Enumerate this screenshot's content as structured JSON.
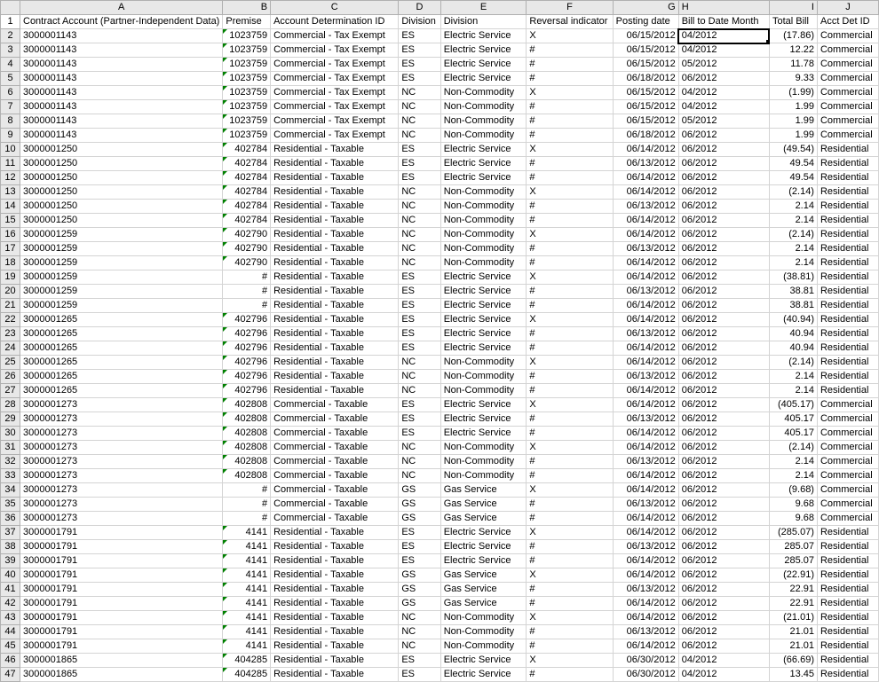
{
  "columns": [
    "A",
    "B",
    "C",
    "D",
    "E",
    "F",
    "G",
    "H",
    "I",
    "J"
  ],
  "headers": {
    "A": "Contract Account (Partner-Independent Data)",
    "B": "Premise",
    "C": "Account Determination ID",
    "D": "Division",
    "E": "Division",
    "F": "Reversal indicator",
    "G": "Posting date",
    "H": "Bill to Date Month",
    "I": "Total Bill",
    "J": "Acct Det ID"
  },
  "selected_cell": "H2",
  "rows": [
    {
      "n": 2,
      "A": "3000001143",
      "B": "1023759",
      "C": "Commercial - Tax Exempt",
      "D": "ES",
      "E": "Electric Service",
      "F": "X",
      "G": "06/15/2012",
      "H": "04/2012",
      "I": "(17.86)",
      "J": "Commercial",
      "tri": true
    },
    {
      "n": 3,
      "A": "3000001143",
      "B": "1023759",
      "C": "Commercial - Tax Exempt",
      "D": "ES",
      "E": "Electric Service",
      "F": "#",
      "G": "06/15/2012",
      "H": "04/2012",
      "I": "12.22",
      "J": "Commercial",
      "tri": true
    },
    {
      "n": 4,
      "A": "3000001143",
      "B": "1023759",
      "C": "Commercial - Tax Exempt",
      "D": "ES",
      "E": "Electric Service",
      "F": "#",
      "G": "06/15/2012",
      "H": "05/2012",
      "I": "11.78",
      "J": "Commercial",
      "tri": true
    },
    {
      "n": 5,
      "A": "3000001143",
      "B": "1023759",
      "C": "Commercial - Tax Exempt",
      "D": "ES",
      "E": "Electric Service",
      "F": "#",
      "G": "06/18/2012",
      "H": "06/2012",
      "I": "9.33",
      "J": "Commercial",
      "tri": true
    },
    {
      "n": 6,
      "A": "3000001143",
      "B": "1023759",
      "C": "Commercial - Tax Exempt",
      "D": "NC",
      "E": "Non-Commodity",
      "F": "X",
      "G": "06/15/2012",
      "H": "04/2012",
      "I": "(1.99)",
      "J": "Commercial",
      "tri": true
    },
    {
      "n": 7,
      "A": "3000001143",
      "B": "1023759",
      "C": "Commercial - Tax Exempt",
      "D": "NC",
      "E": "Non-Commodity",
      "F": "#",
      "G": "06/15/2012",
      "H": "04/2012",
      "I": "1.99",
      "J": "Commercial",
      "tri": true
    },
    {
      "n": 8,
      "A": "3000001143",
      "B": "1023759",
      "C": "Commercial - Tax Exempt",
      "D": "NC",
      "E": "Non-Commodity",
      "F": "#",
      "G": "06/15/2012",
      "H": "05/2012",
      "I": "1.99",
      "J": "Commercial",
      "tri": true
    },
    {
      "n": 9,
      "A": "3000001143",
      "B": "1023759",
      "C": "Commercial - Tax Exempt",
      "D": "NC",
      "E": "Non-Commodity",
      "F": "#",
      "G": "06/18/2012",
      "H": "06/2012",
      "I": "1.99",
      "J": "Commercial",
      "tri": true
    },
    {
      "n": 10,
      "A": "3000001250",
      "B": "402784",
      "C": "Residential - Taxable",
      "D": "ES",
      "E": "Electric Service",
      "F": "X",
      "G": "06/14/2012",
      "H": "06/2012",
      "I": "(49.54)",
      "J": "Residential",
      "tri": true
    },
    {
      "n": 11,
      "A": "3000001250",
      "B": "402784",
      "C": "Residential - Taxable",
      "D": "ES",
      "E": "Electric Service",
      "F": "#",
      "G": "06/13/2012",
      "H": "06/2012",
      "I": "49.54",
      "J": "Residential",
      "tri": true
    },
    {
      "n": 12,
      "A": "3000001250",
      "B": "402784",
      "C": "Residential - Taxable",
      "D": "ES",
      "E": "Electric Service",
      "F": "#",
      "G": "06/14/2012",
      "H": "06/2012",
      "I": "49.54",
      "J": "Residential",
      "tri": true
    },
    {
      "n": 13,
      "A": "3000001250",
      "B": "402784",
      "C": "Residential - Taxable",
      "D": "NC",
      "E": "Non-Commodity",
      "F": "X",
      "G": "06/14/2012",
      "H": "06/2012",
      "I": "(2.14)",
      "J": "Residential",
      "tri": true
    },
    {
      "n": 14,
      "A": "3000001250",
      "B": "402784",
      "C": "Residential - Taxable",
      "D": "NC",
      "E": "Non-Commodity",
      "F": "#",
      "G": "06/13/2012",
      "H": "06/2012",
      "I": "2.14",
      "J": "Residential",
      "tri": true
    },
    {
      "n": 15,
      "A": "3000001250",
      "B": "402784",
      "C": "Residential - Taxable",
      "D": "NC",
      "E": "Non-Commodity",
      "F": "#",
      "G": "06/14/2012",
      "H": "06/2012",
      "I": "2.14",
      "J": "Residential",
      "tri": true
    },
    {
      "n": 16,
      "A": "3000001259",
      "B": "402790",
      "C": "Residential - Taxable",
      "D": "NC",
      "E": "Non-Commodity",
      "F": "X",
      "G": "06/14/2012",
      "H": "06/2012",
      "I": "(2.14)",
      "J": "Residential",
      "tri": true
    },
    {
      "n": 17,
      "A": "3000001259",
      "B": "402790",
      "C": "Residential - Taxable",
      "D": "NC",
      "E": "Non-Commodity",
      "F": "#",
      "G": "06/13/2012",
      "H": "06/2012",
      "I": "2.14",
      "J": "Residential",
      "tri": true
    },
    {
      "n": 18,
      "A": "3000001259",
      "B": "402790",
      "C": "Residential - Taxable",
      "D": "NC",
      "E": "Non-Commodity",
      "F": "#",
      "G": "06/14/2012",
      "H": "06/2012",
      "I": "2.14",
      "J": "Residential",
      "tri": true
    },
    {
      "n": 19,
      "A": "3000001259",
      "B": "#",
      "C": "Residential - Taxable",
      "D": "ES",
      "E": "Electric Service",
      "F": "X",
      "G": "06/14/2012",
      "H": "06/2012",
      "I": "(38.81)",
      "J": "Residential",
      "tri": false
    },
    {
      "n": 20,
      "A": "3000001259",
      "B": "#",
      "C": "Residential - Taxable",
      "D": "ES",
      "E": "Electric Service",
      "F": "#",
      "G": "06/13/2012",
      "H": "06/2012",
      "I": "38.81",
      "J": "Residential",
      "tri": false
    },
    {
      "n": 21,
      "A": "3000001259",
      "B": "#",
      "C": "Residential - Taxable",
      "D": "ES",
      "E": "Electric Service",
      "F": "#",
      "G": "06/14/2012",
      "H": "06/2012",
      "I": "38.81",
      "J": "Residential",
      "tri": false
    },
    {
      "n": 22,
      "A": "3000001265",
      "B": "402796",
      "C": "Residential - Taxable",
      "D": "ES",
      "E": "Electric Service",
      "F": "X",
      "G": "06/14/2012",
      "H": "06/2012",
      "I": "(40.94)",
      "J": "Residential",
      "tri": true
    },
    {
      "n": 23,
      "A": "3000001265",
      "B": "402796",
      "C": "Residential - Taxable",
      "D": "ES",
      "E": "Electric Service",
      "F": "#",
      "G": "06/13/2012",
      "H": "06/2012",
      "I": "40.94",
      "J": "Residential",
      "tri": true
    },
    {
      "n": 24,
      "A": "3000001265",
      "B": "402796",
      "C": "Residential - Taxable",
      "D": "ES",
      "E": "Electric Service",
      "F": "#",
      "G": "06/14/2012",
      "H": "06/2012",
      "I": "40.94",
      "J": "Residential",
      "tri": true
    },
    {
      "n": 25,
      "A": "3000001265",
      "B": "402796",
      "C": "Residential - Taxable",
      "D": "NC",
      "E": "Non-Commodity",
      "F": "X",
      "G": "06/14/2012",
      "H": "06/2012",
      "I": "(2.14)",
      "J": "Residential",
      "tri": true
    },
    {
      "n": 26,
      "A": "3000001265",
      "B": "402796",
      "C": "Residential - Taxable",
      "D": "NC",
      "E": "Non-Commodity",
      "F": "#",
      "G": "06/13/2012",
      "H": "06/2012",
      "I": "2.14",
      "J": "Residential",
      "tri": true
    },
    {
      "n": 27,
      "A": "3000001265",
      "B": "402796",
      "C": "Residential - Taxable",
      "D": "NC",
      "E": "Non-Commodity",
      "F": "#",
      "G": "06/14/2012",
      "H": "06/2012",
      "I": "2.14",
      "J": "Residential",
      "tri": true
    },
    {
      "n": 28,
      "A": "3000001273",
      "B": "402808",
      "C": "Commercial - Taxable",
      "D": "ES",
      "E": "Electric Service",
      "F": "X",
      "G": "06/14/2012",
      "H": "06/2012",
      "I": "(405.17)",
      "J": "Commercial",
      "tri": true
    },
    {
      "n": 29,
      "A": "3000001273",
      "B": "402808",
      "C": "Commercial - Taxable",
      "D": "ES",
      "E": "Electric Service",
      "F": "#",
      "G": "06/13/2012",
      "H": "06/2012",
      "I": "405.17",
      "J": "Commercial",
      "tri": true
    },
    {
      "n": 30,
      "A": "3000001273",
      "B": "402808",
      "C": "Commercial - Taxable",
      "D": "ES",
      "E": "Electric Service",
      "F": "#",
      "G": "06/14/2012",
      "H": "06/2012",
      "I": "405.17",
      "J": "Commercial",
      "tri": true
    },
    {
      "n": 31,
      "A": "3000001273",
      "B": "402808",
      "C": "Commercial - Taxable",
      "D": "NC",
      "E": "Non-Commodity",
      "F": "X",
      "G": "06/14/2012",
      "H": "06/2012",
      "I": "(2.14)",
      "J": "Commercial",
      "tri": true
    },
    {
      "n": 32,
      "A": "3000001273",
      "B": "402808",
      "C": "Commercial - Taxable",
      "D": "NC",
      "E": "Non-Commodity",
      "F": "#",
      "G": "06/13/2012",
      "H": "06/2012",
      "I": "2.14",
      "J": "Commercial",
      "tri": true
    },
    {
      "n": 33,
      "A": "3000001273",
      "B": "402808",
      "C": "Commercial - Taxable",
      "D": "NC",
      "E": "Non-Commodity",
      "F": "#",
      "G": "06/14/2012",
      "H": "06/2012",
      "I": "2.14",
      "J": "Commercial",
      "tri": true
    },
    {
      "n": 34,
      "A": "3000001273",
      "B": "#",
      "C": "Commercial - Taxable",
      "D": "GS",
      "E": "Gas Service",
      "F": "X",
      "G": "06/14/2012",
      "H": "06/2012",
      "I": "(9.68)",
      "J": "Commercial",
      "tri": false
    },
    {
      "n": 35,
      "A": "3000001273",
      "B": "#",
      "C": "Commercial - Taxable",
      "D": "GS",
      "E": "Gas Service",
      "F": "#",
      "G": "06/13/2012",
      "H": "06/2012",
      "I": "9.68",
      "J": "Commercial",
      "tri": false
    },
    {
      "n": 36,
      "A": "3000001273",
      "B": "#",
      "C": "Commercial - Taxable",
      "D": "GS",
      "E": "Gas Service",
      "F": "#",
      "G": "06/14/2012",
      "H": "06/2012",
      "I": "9.68",
      "J": "Commercial",
      "tri": false
    },
    {
      "n": 37,
      "A": "3000001791",
      "B": "4141",
      "C": "Residential - Taxable",
      "D": "ES",
      "E": "Electric Service",
      "F": "X",
      "G": "06/14/2012",
      "H": "06/2012",
      "I": "(285.07)",
      "J": "Residential",
      "tri": true
    },
    {
      "n": 38,
      "A": "3000001791",
      "B": "4141",
      "C": "Residential - Taxable",
      "D": "ES",
      "E": "Electric Service",
      "F": "#",
      "G": "06/13/2012",
      "H": "06/2012",
      "I": "285.07",
      "J": "Residential",
      "tri": true
    },
    {
      "n": 39,
      "A": "3000001791",
      "B": "4141",
      "C": "Residential - Taxable",
      "D": "ES",
      "E": "Electric Service",
      "F": "#",
      "G": "06/14/2012",
      "H": "06/2012",
      "I": "285.07",
      "J": "Residential",
      "tri": true
    },
    {
      "n": 40,
      "A": "3000001791",
      "B": "4141",
      "C": "Residential - Taxable",
      "D": "GS",
      "E": "Gas Service",
      "F": "X",
      "G": "06/14/2012",
      "H": "06/2012",
      "I": "(22.91)",
      "J": "Residential",
      "tri": true
    },
    {
      "n": 41,
      "A": "3000001791",
      "B": "4141",
      "C": "Residential - Taxable",
      "D": "GS",
      "E": "Gas Service",
      "F": "#",
      "G": "06/13/2012",
      "H": "06/2012",
      "I": "22.91",
      "J": "Residential",
      "tri": true
    },
    {
      "n": 42,
      "A": "3000001791",
      "B": "4141",
      "C": "Residential - Taxable",
      "D": "GS",
      "E": "Gas Service",
      "F": "#",
      "G": "06/14/2012",
      "H": "06/2012",
      "I": "22.91",
      "J": "Residential",
      "tri": true
    },
    {
      "n": 43,
      "A": "3000001791",
      "B": "4141",
      "C": "Residential - Taxable",
      "D": "NC",
      "E": "Non-Commodity",
      "F": "X",
      "G": "06/14/2012",
      "H": "06/2012",
      "I": "(21.01)",
      "J": "Residential",
      "tri": true
    },
    {
      "n": 44,
      "A": "3000001791",
      "B": "4141",
      "C": "Residential - Taxable",
      "D": "NC",
      "E": "Non-Commodity",
      "F": "#",
      "G": "06/13/2012",
      "H": "06/2012",
      "I": "21.01",
      "J": "Residential",
      "tri": true
    },
    {
      "n": 45,
      "A": "3000001791",
      "B": "4141",
      "C": "Residential - Taxable",
      "D": "NC",
      "E": "Non-Commodity",
      "F": "#",
      "G": "06/14/2012",
      "H": "06/2012",
      "I": "21.01",
      "J": "Residential",
      "tri": true
    },
    {
      "n": 46,
      "A": "3000001865",
      "B": "404285",
      "C": "Residential - Taxable",
      "D": "ES",
      "E": "Electric Service",
      "F": "X",
      "G": "06/30/2012",
      "H": "04/2012",
      "I": "(66.69)",
      "J": "Residential",
      "tri": true
    },
    {
      "n": 47,
      "A": "3000001865",
      "B": "404285",
      "C": "Residential - Taxable",
      "D": "ES",
      "E": "Electric Service",
      "F": "#",
      "G": "06/30/2012",
      "H": "04/2012",
      "I": "13.45",
      "J": "Residential",
      "tri": true
    }
  ]
}
